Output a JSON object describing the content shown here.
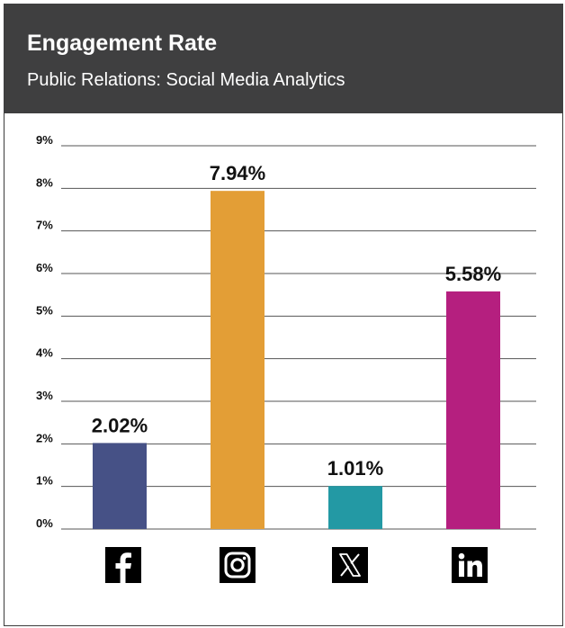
{
  "header": {
    "title": "Engagement Rate",
    "subtitle": "Public Relations: Social Media Analytics"
  },
  "colors": {
    "header_bg": "#3f3f40",
    "gridline": "#555555"
  },
  "chart_data": {
    "type": "bar",
    "title": "Engagement Rate",
    "subtitle": "Public Relations: Social Media Analytics",
    "categories": [
      "Facebook",
      "Instagram",
      "X",
      "LinkedIn"
    ],
    "category_icons": [
      "facebook-icon",
      "instagram-icon",
      "x-icon",
      "linkedin-icon"
    ],
    "values": [
      2.02,
      7.94,
      1.01,
      5.58
    ],
    "value_labels": [
      "2.02%",
      "7.94%",
      "1.01%",
      "5.58%"
    ],
    "bar_colors": [
      "#465186",
      "#e39e36",
      "#2399a4",
      "#b51f7f"
    ],
    "ylim": [
      0,
      9
    ],
    "yticks": [
      0,
      1,
      2,
      3,
      4,
      5,
      6,
      7,
      8,
      9
    ],
    "ytick_labels": [
      "0%",
      "1%",
      "2%",
      "3%",
      "4%",
      "5%",
      "6%",
      "7%",
      "8%",
      "9%"
    ],
    "grid": true,
    "xlabel": "",
    "ylabel": ""
  }
}
